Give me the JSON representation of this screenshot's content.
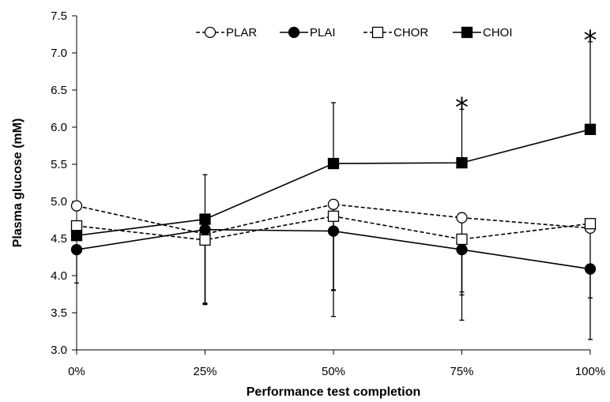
{
  "chart_data": {
    "type": "line",
    "title": "",
    "xlabel": "Performance test completion",
    "ylabel": "Plasma glucose (mM)",
    "categories": [
      "0%",
      "25%",
      "50%",
      "75%",
      "100%"
    ],
    "ylim": [
      3.0,
      7.5
    ],
    "yticks": [
      "3.0",
      "3.5",
      "4.0",
      "4.5",
      "5.0",
      "5.5",
      "6.0",
      "6.5",
      "7.0",
      "7.5"
    ],
    "grid": false,
    "legend_position": "top",
    "series": [
      {
        "name": "PLAR",
        "values": [
          4.94,
          4.56,
          4.96,
          4.78,
          4.64
        ],
        "error": [
          0.0,
          0.95,
          1.15,
          1.0,
          0.0
        ],
        "error_dir": "down",
        "marker": "circle-open",
        "line": "dashed"
      },
      {
        "name": "PLAI",
        "values": [
          4.35,
          4.62,
          4.6,
          4.35,
          4.09
        ],
        "error": [
          0.45,
          1.0,
          1.15,
          0.95,
          0.95
        ],
        "error_dir": "down",
        "marker": "circle-filled",
        "line": "solid"
      },
      {
        "name": "CHOR",
        "values": [
          4.67,
          4.48,
          4.8,
          4.49,
          4.7
        ],
        "error": [
          0.0,
          0.85,
          1.0,
          0.75,
          1.0
        ],
        "error_dir": "down",
        "marker": "square-open",
        "line": "dashed"
      },
      {
        "name": "CHOI",
        "values": [
          4.54,
          4.76,
          5.51,
          5.52,
          5.97
        ],
        "error": [
          0.0,
          0.6,
          0.82,
          0.72,
          1.18
        ],
        "error_dir": "up",
        "marker": "square-filled",
        "line": "solid"
      }
    ],
    "annotations": [
      {
        "text": "*",
        "category": "75%",
        "y": 6.38
      },
      {
        "text": "*",
        "category": "100%",
        "y": 7.28
      }
    ]
  }
}
